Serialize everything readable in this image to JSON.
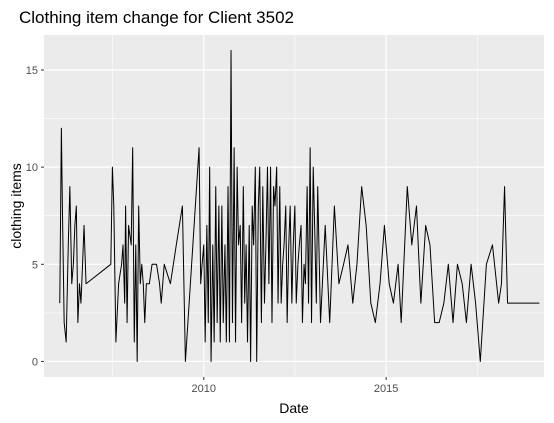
{
  "chart_data": {
    "type": "line",
    "title": "Clothing item change for Client 3502",
    "xlabel": "Date",
    "ylabel": "clothing items",
    "x_axis_type": "date",
    "xlim": [
      "2005-08-15",
      "2019-05-01"
    ],
    "ylim": [
      -0.8,
      16.8
    ],
    "x_ticks": [
      {
        "value": "2010-01-01",
        "label": "2010"
      },
      {
        "value": "2015-01-01",
        "label": "2015"
      }
    ],
    "y_ticks": [
      0,
      5,
      10,
      15
    ],
    "grid": true,
    "panel_background": "#ebebeb",
    "grid_color": "#ffffff",
    "line_color": "#000000",
    "series": [
      {
        "x": [
          "2006-01-20",
          "2006-02-05",
          "2006-02-15",
          "2006-03-05",
          "2006-03-25",
          "2006-04-15",
          "2006-05-01",
          "2006-05-20",
          "2006-06-05",
          "2006-06-20",
          "2006-07-05",
          "2006-07-20",
          "2006-08-05",
          "2006-08-20",
          "2006-09-05",
          "2006-09-20",
          "2006-10-10",
          "2007-06-15",
          "2007-07-01",
          "2007-07-15",
          "2007-08-05",
          "2007-09-01",
          "2007-10-01",
          "2007-10-15",
          "2007-11-01",
          "2007-11-10",
          "2007-11-25",
          "2007-12-10",
          "2008-01-05",
          "2008-01-20",
          "2008-02-05",
          "2008-02-20",
          "2008-03-05",
          "2008-03-20",
          "2008-04-05",
          "2008-04-20",
          "2008-05-05",
          "2008-05-20",
          "2008-06-05",
          "2008-06-20",
          "2008-07-05",
          "2008-08-01",
          "2008-09-15",
          "2008-10-15",
          "2008-11-01",
          "2008-12-01",
          "2009-02-01",
          "2009-04-01",
          "2009-06-01",
          "2009-07-01",
          "2009-11-15",
          "2009-12-01",
          "2009-12-15",
          "2010-01-01",
          "2010-01-15",
          "2010-02-01",
          "2010-02-15",
          "2010-03-01",
          "2010-03-15",
          "2010-04-01",
          "2010-04-15",
          "2010-05-01",
          "2010-05-15",
          "2010-06-01",
          "2010-06-15",
          "2010-07-01",
          "2010-07-15",
          "2010-08-01",
          "2010-08-15",
          "2010-09-01",
          "2010-09-15",
          "2010-10-01",
          "2010-10-15",
          "2010-11-01",
          "2010-11-15",
          "2010-12-01",
          "2010-12-15",
          "2011-01-01",
          "2011-01-15",
          "2011-02-01",
          "2011-02-15",
          "2011-03-01",
          "2011-03-15",
          "2011-04-01",
          "2011-04-15",
          "2011-05-01",
          "2011-05-15",
          "2011-06-01",
          "2011-06-15",
          "2011-07-01",
          "2011-07-15",
          "2011-08-01",
          "2011-08-15",
          "2011-09-01",
          "2011-09-15",
          "2011-10-01",
          "2011-10-15",
          "2011-11-01",
          "2011-11-15",
          "2011-12-01",
          "2011-12-15",
          "2012-01-01",
          "2012-01-15",
          "2012-02-01",
          "2012-02-15",
          "2012-03-01",
          "2012-03-15",
          "2012-04-01",
          "2012-04-15",
          "2012-05-01",
          "2012-05-15",
          "2012-06-01",
          "2012-06-15",
          "2012-07-01",
          "2012-07-15",
          "2012-08-01",
          "2012-08-15",
          "2012-09-01",
          "2012-09-15",
          "2012-10-01",
          "2012-10-15",
          "2012-11-01",
          "2012-11-15",
          "2012-12-01",
          "2012-12-15",
          "2013-01-01",
          "2013-01-15",
          "2013-02-01",
          "2013-02-15",
          "2013-03-15",
          "2013-05-01",
          "2013-06-15",
          "2013-08-01",
          "2013-09-15",
          "2013-11-01",
          "2013-12-15",
          "2014-02-01",
          "2014-03-15",
          "2014-05-01",
          "2014-06-15",
          "2014-08-01",
          "2014-09-15",
          "2014-11-01",
          "2014-12-15",
          "2015-02-01",
          "2015-03-15",
          "2015-05-01",
          "2015-06-01",
          "2015-08-01",
          "2015-09-15",
          "2015-11-01",
          "2015-12-15",
          "2016-02-01",
          "2016-03-15",
          "2016-05-01",
          "2016-06-15",
          "2016-08-01",
          "2016-09-15",
          "2016-11-01",
          "2016-12-15",
          "2017-02-01",
          "2017-03-15",
          "2017-05-01",
          "2017-06-15",
          "2017-08-01",
          "2017-10-01",
          "2017-12-01",
          "2018-02-01",
          "2018-03-01",
          "2018-04-01",
          "2018-05-01",
          "2018-06-01",
          "2018-07-01",
          "2018-07-20",
          "2018-08-15",
          "2018-09-15",
          "2018-10-15",
          "2018-11-15",
          "2018-12-15",
          "2019-01-15",
          "2019-02-15",
          "2019-03-15"
        ],
        "values": [
          3,
          12,
          8,
          2,
          1,
          6,
          9,
          4,
          5,
          7,
          8,
          2,
          4,
          3,
          5,
          7,
          4,
          5,
          10,
          8,
          1,
          4,
          5,
          6,
          3,
          8,
          2,
          7,
          6,
          11,
          1,
          6,
          0,
          8,
          4,
          5,
          4,
          2,
          4,
          4,
          4,
          5,
          5,
          4,
          3,
          5,
          4,
          6,
          8,
          0,
          11,
          4,
          5,
          6,
          1,
          7,
          2,
          10,
          0,
          6,
          1,
          9,
          2,
          8,
          1,
          8,
          2,
          6,
          1,
          9,
          1,
          16,
          2,
          11,
          1,
          10,
          6,
          7,
          2,
          9,
          3,
          6,
          1,
          7,
          0,
          8,
          6,
          10,
          0,
          8,
          10,
          2,
          9,
          3,
          6,
          10,
          4,
          10,
          2,
          9,
          8,
          10,
          3,
          9,
          3,
          5,
          6,
          8,
          2,
          6,
          8,
          3,
          6,
          8,
          3,
          5,
          6,
          7,
          2,
          5,
          4,
          9,
          3,
          11,
          2,
          10,
          7,
          3,
          9,
          2,
          7,
          2,
          8,
          4,
          5,
          6,
          3,
          5,
          9,
          7,
          3,
          2,
          4,
          7,
          4,
          3,
          5,
          2,
          9,
          6,
          8,
          3,
          7,
          6,
          2,
          2,
          3,
          5,
          2,
          5,
          4,
          2,
          5,
          3,
          0,
          5,
          6,
          3,
          4,
          9,
          3,
          3,
          3,
          3,
          3,
          3,
          3,
          3,
          3,
          3,
          3,
          3
        ]
      }
    ]
  }
}
